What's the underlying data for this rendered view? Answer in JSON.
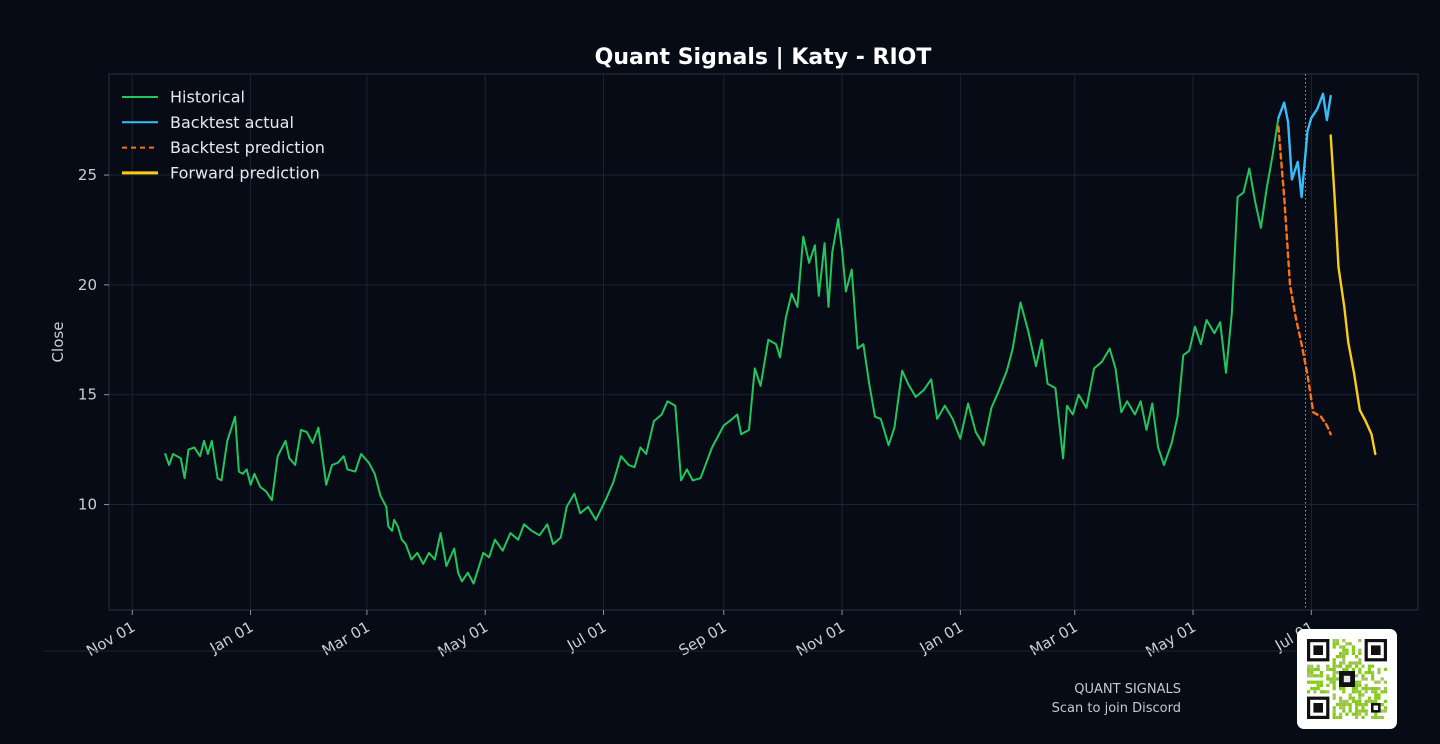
{
  "chart_data": {
    "type": "line",
    "title": "Quant Signals | Katy - RIOT",
    "ylabel": "Close",
    "xlabel": "",
    "x_tick_labels": [
      "Nov 01",
      "Jan 01",
      "Mar 01",
      "May 01",
      "Jul 01",
      "Sep 01",
      "Nov 01",
      "Jan 01",
      "Mar 01",
      "May 01",
      "Jul 01"
    ],
    "x_tick_dates": [
      "2023-11-01",
      "2024-01-01",
      "2024-03-01",
      "2024-05-01",
      "2024-07-01",
      "2024-09-01",
      "2024-11-01",
      "2025-01-01",
      "2025-03-01",
      "2025-05-01",
      "2025-07-01"
    ],
    "x_range": [
      "2023-10-20",
      "2025-08-25"
    ],
    "y_ticks": [
      10,
      15,
      20,
      25
    ],
    "ylim": [
      5.2,
      29.6
    ],
    "grid": true,
    "legend_position": "top-left",
    "split_date": "2025-06-28",
    "series": [
      {
        "name": "Historical",
        "color": "#22c55e",
        "style": "solid",
        "points": [
          [
            "2023-11-18",
            12.3
          ],
          [
            "2023-11-20",
            11.8
          ],
          [
            "2023-11-22",
            12.3
          ],
          [
            "2023-11-26",
            12.1
          ],
          [
            "2023-11-28",
            11.2
          ],
          [
            "2023-11-30",
            12.5
          ],
          [
            "2023-12-03",
            12.6
          ],
          [
            "2023-12-06",
            12.2
          ],
          [
            "2023-12-08",
            12.9
          ],
          [
            "2023-12-10",
            12.3
          ],
          [
            "2023-12-12",
            12.9
          ],
          [
            "2023-12-15",
            11.2
          ],
          [
            "2023-12-17",
            11.1
          ],
          [
            "2023-12-20",
            12.9
          ],
          [
            "2023-12-24",
            14.0
          ],
          [
            "2023-12-26",
            11.5
          ],
          [
            "2023-12-28",
            11.4
          ],
          [
            "2023-12-30",
            11.6
          ],
          [
            "2024-01-01",
            10.9
          ],
          [
            "2024-01-03",
            11.4
          ],
          [
            "2024-01-06",
            10.8
          ],
          [
            "2024-01-09",
            10.6
          ],
          [
            "2024-01-12",
            10.2
          ],
          [
            "2024-01-15",
            12.2
          ],
          [
            "2024-01-19",
            12.9
          ],
          [
            "2024-01-21",
            12.1
          ],
          [
            "2024-01-24",
            11.8
          ],
          [
            "2024-01-27",
            13.4
          ],
          [
            "2024-01-30",
            13.3
          ],
          [
            "2024-02-02",
            12.8
          ],
          [
            "2024-02-05",
            13.5
          ],
          [
            "2024-02-09",
            10.9
          ],
          [
            "2024-02-12",
            11.8
          ],
          [
            "2024-02-15",
            11.9
          ],
          [
            "2024-02-18",
            12.2
          ],
          [
            "2024-02-20",
            11.6
          ],
          [
            "2024-02-24",
            11.5
          ],
          [
            "2024-02-27",
            12.3
          ],
          [
            "2024-03-02",
            11.9
          ],
          [
            "2024-03-05",
            11.4
          ],
          [
            "2024-03-08",
            10.4
          ],
          [
            "2024-03-11",
            9.9
          ],
          [
            "2024-03-12",
            9.0
          ],
          [
            "2024-03-14",
            8.8
          ],
          [
            "2024-03-15",
            9.3
          ],
          [
            "2024-03-17",
            9.0
          ],
          [
            "2024-03-19",
            8.4
          ],
          [
            "2024-03-21",
            8.2
          ],
          [
            "2024-03-24",
            7.5
          ],
          [
            "2024-03-27",
            7.8
          ],
          [
            "2024-03-30",
            7.3
          ],
          [
            "2024-04-02",
            7.8
          ],
          [
            "2024-04-05",
            7.5
          ],
          [
            "2024-04-08",
            8.7
          ],
          [
            "2024-04-11",
            7.2
          ],
          [
            "2024-04-15",
            8.0
          ],
          [
            "2024-04-17",
            6.9
          ],
          [
            "2024-04-19",
            6.5
          ],
          [
            "2024-04-22",
            6.9
          ],
          [
            "2024-04-25",
            6.4
          ],
          [
            "2024-04-30",
            7.8
          ],
          [
            "2024-05-03",
            7.6
          ],
          [
            "2024-05-06",
            8.4
          ],
          [
            "2024-05-10",
            7.9
          ],
          [
            "2024-05-14",
            8.7
          ],
          [
            "2024-05-18",
            8.4
          ],
          [
            "2024-05-21",
            9.1
          ],
          [
            "2024-05-25",
            8.8
          ],
          [
            "2024-05-29",
            8.6
          ],
          [
            "2024-06-02",
            9.1
          ],
          [
            "2024-06-05",
            8.2
          ],
          [
            "2024-06-09",
            8.5
          ],
          [
            "2024-06-12",
            9.9
          ],
          [
            "2024-06-16",
            10.5
          ],
          [
            "2024-06-19",
            9.6
          ],
          [
            "2024-06-23",
            9.9
          ],
          [
            "2024-06-27",
            9.3
          ],
          [
            "2024-07-02",
            10.2
          ],
          [
            "2024-07-06",
            11.0
          ],
          [
            "2024-07-10",
            12.2
          ],
          [
            "2024-07-14",
            11.8
          ],
          [
            "2024-07-17",
            11.7
          ],
          [
            "2024-07-20",
            12.6
          ],
          [
            "2024-07-23",
            12.3
          ],
          [
            "2024-07-27",
            13.8
          ],
          [
            "2024-07-31",
            14.1
          ],
          [
            "2024-08-03",
            14.7
          ],
          [
            "2024-08-07",
            14.5
          ],
          [
            "2024-08-10",
            11.1
          ],
          [
            "2024-08-13",
            11.6
          ],
          [
            "2024-08-16",
            11.1
          ],
          [
            "2024-08-20",
            11.2
          ],
          [
            "2024-08-23",
            11.9
          ],
          [
            "2024-08-26",
            12.6
          ],
          [
            "2024-08-29",
            13.1
          ],
          [
            "2024-09-01",
            13.6
          ],
          [
            "2024-09-04",
            13.8
          ],
          [
            "2024-09-08",
            14.1
          ],
          [
            "2024-09-10",
            13.2
          ],
          [
            "2024-09-14",
            13.4
          ],
          [
            "2024-09-17",
            16.2
          ],
          [
            "2024-09-20",
            15.4
          ],
          [
            "2024-09-24",
            17.5
          ],
          [
            "2024-09-28",
            17.3
          ],
          [
            "2024-09-30",
            16.7
          ],
          [
            "2024-10-03",
            18.5
          ],
          [
            "2024-10-06",
            19.6
          ],
          [
            "2024-10-09",
            19.0
          ],
          [
            "2024-10-12",
            22.2
          ],
          [
            "2024-10-15",
            21.0
          ],
          [
            "2024-10-18",
            21.8
          ],
          [
            "2024-10-20",
            19.5
          ],
          [
            "2024-10-23",
            21.9
          ],
          [
            "2024-10-25",
            19.0
          ],
          [
            "2024-10-27",
            21.5
          ],
          [
            "2024-10-30",
            23.0
          ],
          [
            "2024-11-01",
            21.6
          ],
          [
            "2024-11-03",
            19.7
          ],
          [
            "2024-11-06",
            20.7
          ],
          [
            "2024-11-09",
            17.1
          ],
          [
            "2024-11-12",
            17.3
          ],
          [
            "2024-11-15",
            15.5
          ],
          [
            "2024-11-18",
            14.0
          ],
          [
            "2024-11-21",
            13.9
          ],
          [
            "2024-11-25",
            12.7
          ],
          [
            "2024-11-28",
            13.5
          ],
          [
            "2024-12-02",
            16.1
          ],
          [
            "2024-12-05",
            15.5
          ],
          [
            "2024-12-09",
            14.9
          ],
          [
            "2024-12-13",
            15.2
          ],
          [
            "2024-12-17",
            15.7
          ],
          [
            "2024-12-20",
            13.9
          ],
          [
            "2024-12-24",
            14.5
          ],
          [
            "2024-12-28",
            13.9
          ],
          [
            "2025-01-01",
            13.0
          ],
          [
            "2025-01-05",
            14.6
          ],
          [
            "2025-01-09",
            13.3
          ],
          [
            "2025-01-13",
            12.7
          ],
          [
            "2025-01-17",
            14.4
          ],
          [
            "2025-01-21",
            15.2
          ],
          [
            "2025-01-25",
            16.1
          ],
          [
            "2025-01-28",
            17.1
          ],
          [
            "2025-02-01",
            19.2
          ],
          [
            "2025-02-05",
            17.9
          ],
          [
            "2025-02-09",
            16.3
          ],
          [
            "2025-02-12",
            17.5
          ],
          [
            "2025-02-15",
            15.5
          ],
          [
            "2025-02-19",
            15.3
          ],
          [
            "2025-02-23",
            12.1
          ],
          [
            "2025-02-25",
            14.5
          ],
          [
            "2025-02-28",
            14.1
          ],
          [
            "2025-03-03",
            15.0
          ],
          [
            "2025-03-07",
            14.4
          ],
          [
            "2025-03-11",
            16.2
          ],
          [
            "2025-03-15",
            16.5
          ],
          [
            "2025-03-19",
            17.1
          ],
          [
            "2025-03-22",
            16.2
          ],
          [
            "2025-03-25",
            14.2
          ],
          [
            "2025-03-28",
            14.7
          ],
          [
            "2025-04-01",
            14.1
          ],
          [
            "2025-04-04",
            14.7
          ],
          [
            "2025-04-07",
            13.4
          ],
          [
            "2025-04-10",
            14.6
          ],
          [
            "2025-04-13",
            12.6
          ],
          [
            "2025-04-16",
            11.8
          ],
          [
            "2025-04-20",
            12.8
          ],
          [
            "2025-04-23",
            14.0
          ],
          [
            "2025-04-26",
            16.8
          ],
          [
            "2025-04-29",
            17.0
          ],
          [
            "2025-05-02",
            18.1
          ],
          [
            "2025-05-05",
            17.3
          ],
          [
            "2025-05-08",
            18.4
          ],
          [
            "2025-05-12",
            17.8
          ],
          [
            "2025-05-15",
            18.3
          ],
          [
            "2025-05-18",
            16.0
          ],
          [
            "2025-05-21",
            18.7
          ],
          [
            "2025-05-24",
            24.0
          ],
          [
            "2025-05-27",
            24.2
          ],
          [
            "2025-05-30",
            25.3
          ],
          [
            "2025-06-02",
            23.8
          ],
          [
            "2025-06-05",
            22.6
          ],
          [
            "2025-06-08",
            24.4
          ],
          [
            "2025-06-11",
            25.9
          ],
          [
            "2025-06-14",
            27.6
          ]
        ]
      },
      {
        "name": "Backtest actual",
        "color": "#38bdf8",
        "style": "solid",
        "points": [
          [
            "2025-06-14",
            27.6
          ],
          [
            "2025-06-17",
            28.3
          ],
          [
            "2025-06-19",
            27.4
          ],
          [
            "2025-06-21",
            24.8
          ],
          [
            "2025-06-24",
            25.6
          ],
          [
            "2025-06-26",
            24.0
          ],
          [
            "2025-06-29",
            27.0
          ],
          [
            "2025-07-01",
            27.6
          ],
          [
            "2025-07-04",
            28.0
          ],
          [
            "2025-07-07",
            28.7
          ],
          [
            "2025-07-09",
            27.5
          ],
          [
            "2025-07-11",
            28.6
          ]
        ]
      },
      {
        "name": "Backtest prediction",
        "color": "#f97316",
        "style": "dashed",
        "points": [
          [
            "2025-06-14",
            27.2
          ],
          [
            "2025-06-17",
            24.0
          ],
          [
            "2025-06-20",
            20.0
          ],
          [
            "2025-06-23",
            18.5
          ],
          [
            "2025-06-26",
            17.3
          ],
          [
            "2025-06-29",
            15.9
          ],
          [
            "2025-07-02",
            14.2
          ],
          [
            "2025-07-06",
            14.0
          ],
          [
            "2025-07-09",
            13.6
          ],
          [
            "2025-07-11",
            13.2
          ]
        ]
      },
      {
        "name": "Forward prediction",
        "color": "#facc15",
        "style": "solid",
        "points": [
          [
            "2025-07-11",
            26.8
          ],
          [
            "2025-07-13",
            24.0
          ],
          [
            "2025-07-15",
            20.8
          ],
          [
            "2025-07-18",
            19.0
          ],
          [
            "2025-07-20",
            17.4
          ],
          [
            "2025-07-23",
            16.0
          ],
          [
            "2025-07-26",
            14.3
          ],
          [
            "2025-07-29",
            13.8
          ],
          [
            "2025-08-01",
            13.2
          ],
          [
            "2025-08-03",
            12.3
          ]
        ]
      }
    ]
  },
  "footer": {
    "brand": "QUANT SIGNALS",
    "tagline": "Scan to join Discord"
  }
}
